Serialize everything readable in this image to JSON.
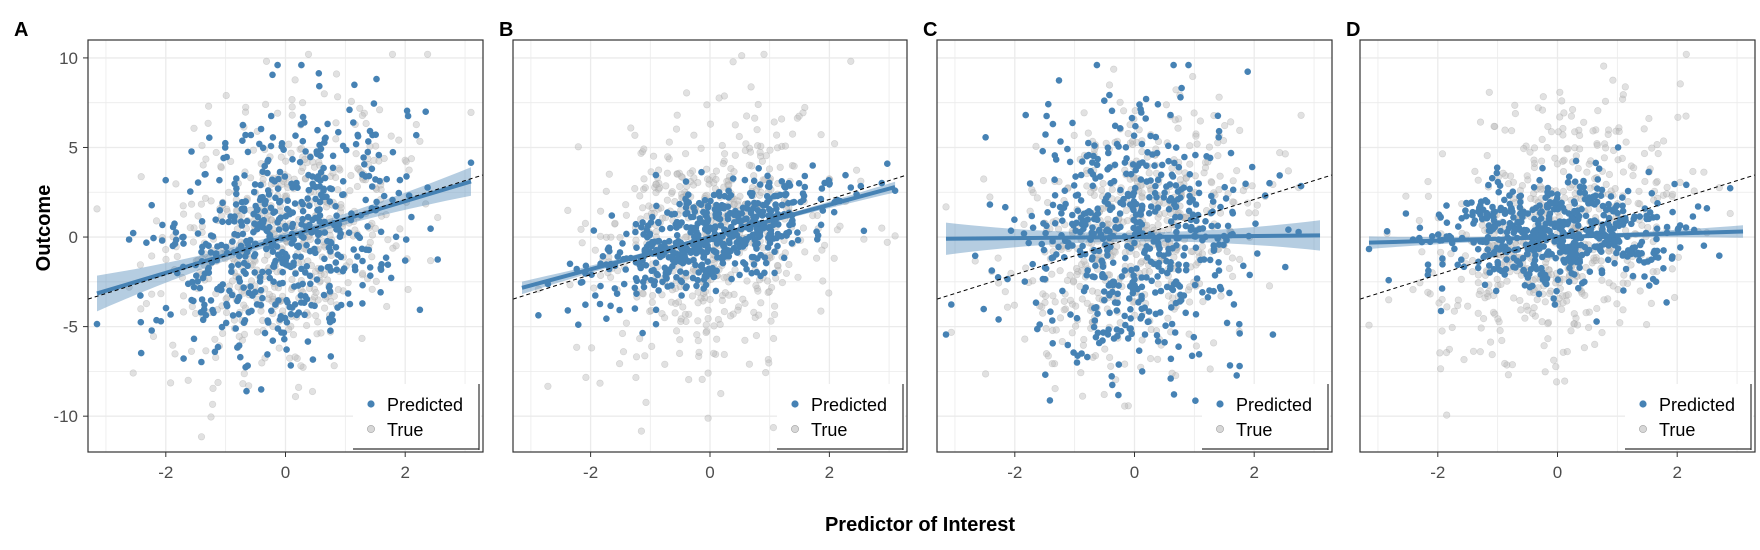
{
  "figure": {
    "xlabel": "Predictor of Interest",
    "ylabel": "Outcome"
  },
  "colors": {
    "predicted": "#4682B4",
    "true": "#bdbdbd",
    "band": "#4682B4",
    "reference_line": "#000000",
    "grid": "#ebebeb",
    "axis_text": "#4d4d4d"
  },
  "chart_data": [
    {
      "panel": "A",
      "type": "scatter",
      "xlim": [
        -3.3,
        3.3
      ],
      "ylim": [
        -12,
        11
      ],
      "xticks": [
        "-2",
        "0",
        "2"
      ],
      "yticks": [
        "10",
        "5",
        "0",
        "-5",
        "-10"
      ],
      "legend": [
        "Predicted",
        "True"
      ],
      "legend_position": "bottom-right",
      "predicted_fit": {
        "intercept": 0.0,
        "slope": 1.0,
        "se": [
          1.0,
          0.25,
          0.8
        ]
      },
      "predicted_spread": 3.2,
      "true_spread": 3.4,
      "true_line": {
        "intercept": 0.0,
        "slope": 1.05
      },
      "n": 550,
      "seed": 11
    },
    {
      "panel": "B",
      "type": "scatter",
      "xlim": [
        -3.3,
        3.3
      ],
      "ylim": [
        -12,
        11
      ],
      "xticks": [
        "-2",
        "0",
        "2"
      ],
      "yticks": [
        "10",
        "5",
        "0",
        "-5",
        "-10"
      ],
      "legend": [
        "Predicted",
        "True"
      ],
      "legend_position": "bottom-right",
      "predicted_fit": {
        "intercept": 0.0,
        "slope": 0.9,
        "se": [
          0.35,
          0.1,
          0.3
        ]
      },
      "predicted_spread": 1.3,
      "true_spread": 3.4,
      "true_line": {
        "intercept": 0.0,
        "slope": 1.05
      },
      "n": 550,
      "seed": 22
    },
    {
      "panel": "C",
      "type": "scatter",
      "xlim": [
        -3.3,
        3.3
      ],
      "ylim": [
        -12,
        11
      ],
      "xticks": [
        "-2",
        "0",
        "2"
      ],
      "yticks": [
        "10",
        "5",
        "0",
        "-5",
        "-10"
      ],
      "legend": [
        "Predicted",
        "True"
      ],
      "legend_position": "bottom-right",
      "predicted_fit": {
        "intercept": 0.0,
        "slope": 0.03,
        "se": [
          0.9,
          0.25,
          0.85
        ]
      },
      "predicted_spread": 3.4,
      "true_spread": 3.4,
      "true_line": {
        "intercept": 0.0,
        "slope": 1.05
      },
      "n": 550,
      "seed": 33
    },
    {
      "panel": "D",
      "type": "scatter",
      "xlim": [
        -3.3,
        3.3
      ],
      "ylim": [
        -12,
        11
      ],
      "xticks": [
        "-2",
        "0",
        "2"
      ],
      "yticks": [
        "10",
        "5",
        "0",
        "-5",
        "-10"
      ],
      "legend": [
        "Predicted",
        "True"
      ],
      "legend_position": "bottom-right",
      "predicted_fit": {
        "intercept": 0.0,
        "slope": 0.1,
        "se": [
          0.35,
          0.1,
          0.35
        ]
      },
      "predicted_spread": 1.5,
      "true_spread": 3.4,
      "true_line": {
        "intercept": 0.0,
        "slope": 1.05
      },
      "n": 550,
      "seed": 44
    }
  ]
}
